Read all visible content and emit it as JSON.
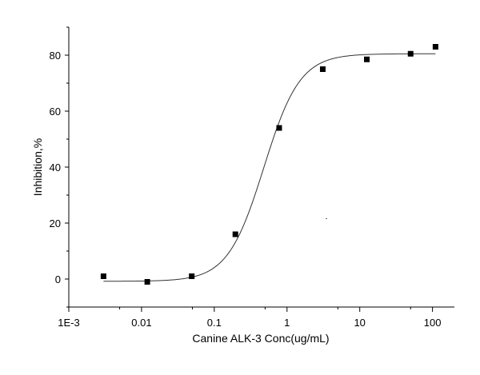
{
  "chart_data": {
    "type": "scatter",
    "title": "",
    "xlabel": "Canine ALK-3  Conc(ug/mL)",
    "ylabel": "Inhibition,%",
    "xscale": "log",
    "xlim": [
      0.001,
      200
    ],
    "ylim": [
      -10,
      90
    ],
    "xticks": [
      0.001,
      0.01,
      0.1,
      1,
      10,
      100
    ],
    "xtick_labels": [
      "1E-3",
      "0.01",
      "0.1",
      "1",
      "10",
      "100"
    ],
    "yticks": [
      0,
      20,
      40,
      60,
      80
    ],
    "ytick_labels": [
      "0",
      "20",
      "40",
      "60",
      "80"
    ],
    "grid": false,
    "legend": "none",
    "series": [
      {
        "marker": "square",
        "x": [
          0.003,
          0.012,
          0.049,
          0.195,
          0.78,
          3.1,
          12.5,
          50,
          110
        ],
        "y": [
          1,
          -1,
          1,
          16,
          54,
          75,
          78.5,
          80.5,
          83
        ]
      }
    ],
    "fit_curve": {
      "model": "four-parameter logistic",
      "bottom": -0.8,
      "top": 80.5,
      "ec50": 0.48,
      "hill": 1.75,
      "x_range": [
        0.003,
        110
      ]
    }
  }
}
